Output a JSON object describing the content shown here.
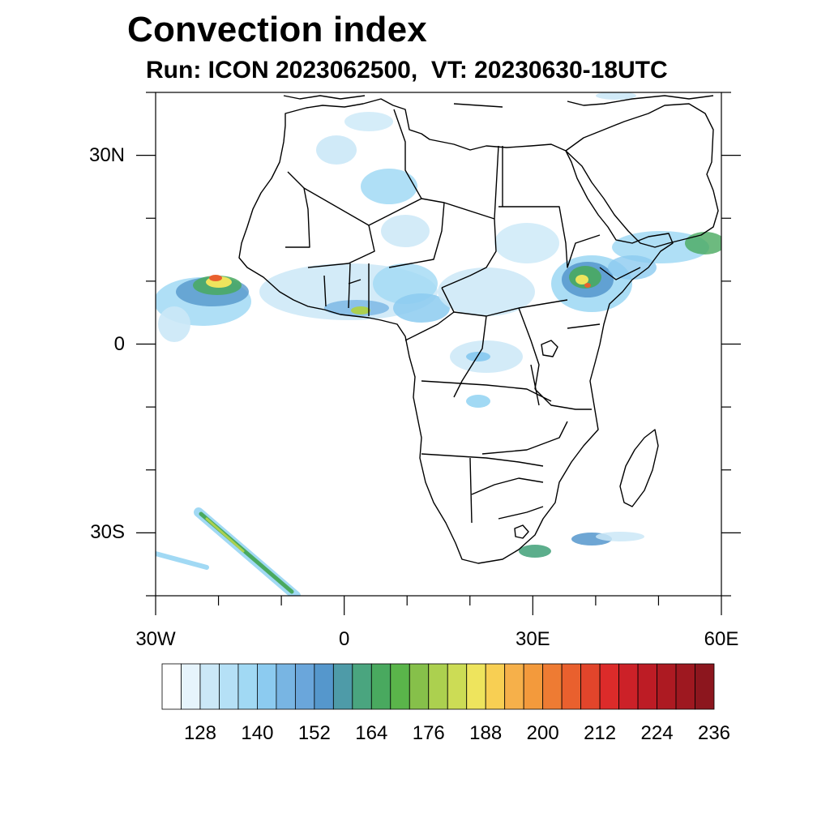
{
  "title": "Convection index",
  "subtitle": "Run: ICON 2023062500,  VT: 20230630-18UTC",
  "map": {
    "region": "Africa",
    "lon_range": [
      -30,
      60
    ],
    "lat_range": [
      -40,
      40
    ],
    "lat_ticks": [
      {
        "value": 30,
        "label": "30N"
      },
      {
        "value": 0,
        "label": "0"
      },
      {
        "value": -30,
        "label": "30S"
      }
    ],
    "lon_ticks": [
      {
        "value": -30,
        "label": "30W"
      },
      {
        "value": 0,
        "label": "0"
      },
      {
        "value": 30,
        "label": "30E"
      },
      {
        "value": 60,
        "label": "60E"
      }
    ]
  },
  "colorbar": {
    "labels": [
      "128",
      "140",
      "152",
      "164",
      "176",
      "188",
      "200",
      "212",
      "224",
      "236"
    ],
    "colors": [
      "#ffffff",
      "#e6f4fc",
      "#cbe8f7",
      "#b5e0f6",
      "#a1d9f4",
      "#8ccbf0",
      "#78b5e3",
      "#6aa6db",
      "#5597cc",
      "#4e9ba8",
      "#4aa57f",
      "#49a95f",
      "#5ab54a",
      "#86c04a",
      "#acd04f",
      "#ccdc55",
      "#eee45d",
      "#f8cf53",
      "#f6b04a",
      "#f39a3c",
      "#ee7b33",
      "#e9602e",
      "#e2452b",
      "#dc2b2a",
      "#cc2128",
      "#bd1c25",
      "#ad1a22",
      "#9e1820",
      "#8c161e"
    ]
  },
  "colors": {
    "coastline": "#000000",
    "low_convection": "#a1d9f4",
    "moderate_convection": "#5597cc",
    "high_convection": "#49a95f",
    "very_high_convection": "#eee45d",
    "extreme_convection": "#e9602e"
  }
}
